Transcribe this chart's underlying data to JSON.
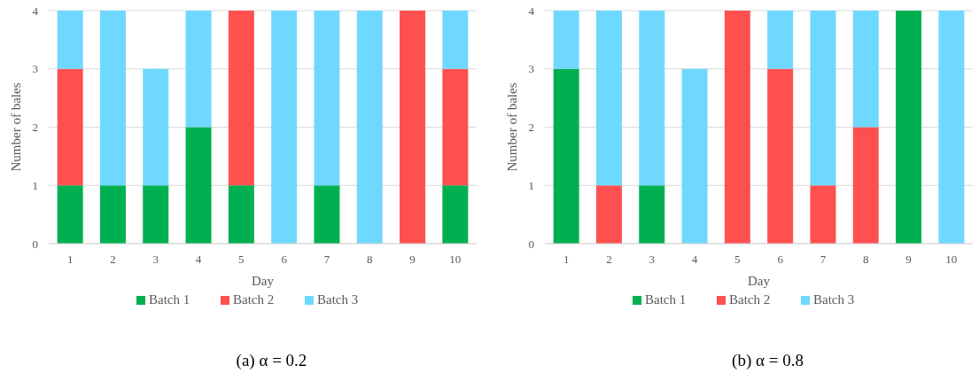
{
  "chart_data": [
    {
      "type": "bar",
      "title": "(a) α = 0.2",
      "xlabel": "Day",
      "ylabel": "Number of bales",
      "categories": [
        "1",
        "2",
        "3",
        "4",
        "5",
        "6",
        "7",
        "8",
        "9",
        "10"
      ],
      "stacked": true,
      "ylim": [
        0,
        4
      ],
      "yticks": [
        0,
        1,
        2,
        3,
        4
      ],
      "grid": "y",
      "legend": "bottom",
      "series": [
        {
          "name": "Batch 1",
          "color": "#00b050",
          "values": [
            1,
            1,
            1,
            2,
            1,
            0,
            1,
            0,
            0,
            1
          ]
        },
        {
          "name": "Batch 2",
          "color": "#ff5050",
          "values": [
            2,
            0,
            0,
            0,
            3,
            0,
            0,
            0,
            4,
            2
          ]
        },
        {
          "name": "Batch 3",
          "color": "#6fd8ff",
          "values": [
            1,
            3,
            2,
            2,
            0,
            4,
            3,
            4,
            0,
            1
          ]
        }
      ]
    },
    {
      "type": "bar",
      "title": "(b) α = 0.8",
      "xlabel": "Day",
      "ylabel": "Number of bales",
      "categories": [
        "1",
        "2",
        "3",
        "4",
        "5",
        "6",
        "7",
        "8",
        "9",
        "10"
      ],
      "stacked": true,
      "ylim": [
        0,
        4
      ],
      "yticks": [
        0,
        1,
        2,
        3,
        4
      ],
      "grid": "y",
      "legend": "bottom",
      "series": [
        {
          "name": "Batch 1",
          "color": "#00b050",
          "values": [
            3,
            0,
            1,
            0,
            0,
            0,
            0,
            0,
            4,
            0
          ]
        },
        {
          "name": "Batch 2",
          "color": "#ff5050",
          "values": [
            0,
            1,
            0,
            0,
            4,
            3,
            1,
            2,
            0,
            0
          ]
        },
        {
          "name": "Batch 3",
          "color": "#6fd8ff",
          "values": [
            1,
            3,
            3,
            3,
            0,
            1,
            3,
            2,
            0,
            4
          ]
        }
      ]
    }
  ]
}
